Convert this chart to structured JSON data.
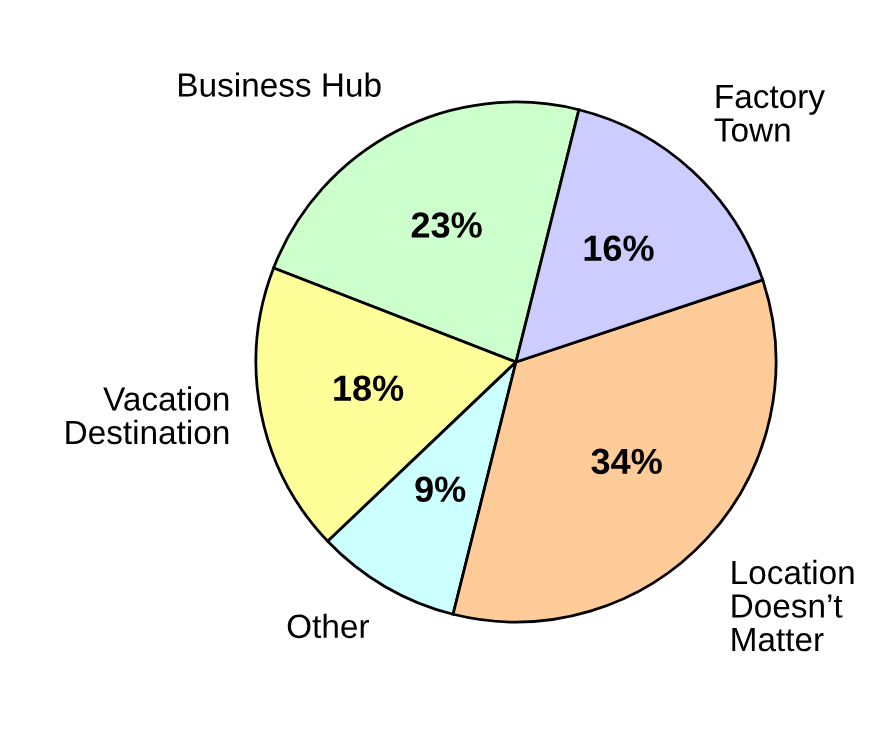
{
  "chart_data": {
    "type": "pie",
    "categories": [
      "Business Hub",
      "Vacation\nDestination",
      "Other",
      "Location\nDoesn’t\nMatter",
      "Factory\nTown"
    ],
    "values": [
      23,
      18,
      9,
      34,
      16
    ],
    "value_labels": [
      "23%",
      "18%",
      "9%",
      "34%",
      "16%"
    ],
    "colors": [
      "#ccffcc",
      "#ffff99",
      "#ccffff",
      "#ffcc99",
      "#ccccff"
    ]
  }
}
